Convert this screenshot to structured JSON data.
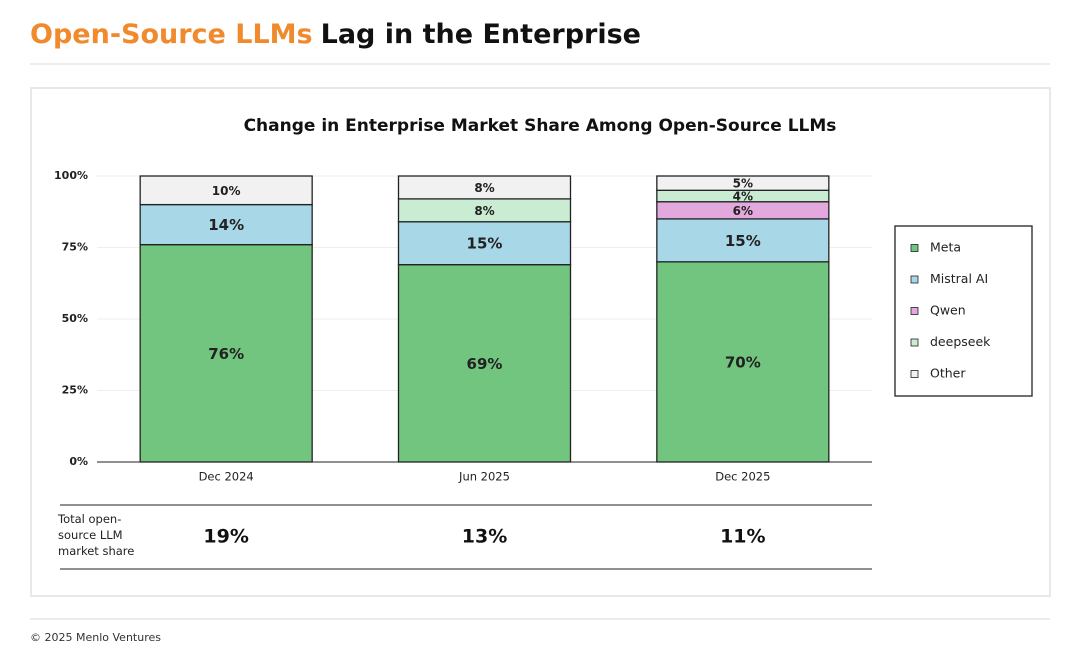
{
  "header": {
    "title_highlight": "Open-Source LLMs",
    "title_rest": "Lag in the Enterprise"
  },
  "chart_data": {
    "type": "stacked_bar",
    "title": "Change in Enterprise Market Share Among Open-Source LLMs",
    "categories": [
      "Dec 2024",
      "Jun 2025",
      "Dec 2025"
    ],
    "series": [
      {
        "name": "Meta",
        "color": "#72c57f",
        "values": [
          76,
          69,
          70
        ],
        "value_labels": [
          "76%",
          "69%",
          "70%"
        ]
      },
      {
        "name": "Mistral AI",
        "color": "#a8d8e8",
        "values": [
          14,
          15,
          15
        ],
        "value_labels": [
          "14%",
          "15%",
          "15%"
        ]
      },
      {
        "name": "Qwen",
        "color": "#e3a9de",
        "values": [
          null,
          null,
          6
        ],
        "value_labels": [
          null,
          null,
          "6%"
        ]
      },
      {
        "name": "deepseek",
        "color": "#c9ecd3",
        "values": [
          null,
          8,
          4
        ],
        "value_labels": [
          null,
          "8%",
          "4%"
        ]
      },
      {
        "name": "Other",
        "color": "#f1f1f1",
        "values": [
          10,
          8,
          5
        ],
        "value_labels": [
          "10%",
          "8%",
          "5%"
        ]
      }
    ],
    "ylim": [
      0,
      100
    ],
    "yticks": [
      {
        "value": 0,
        "label": "0%"
      },
      {
        "value": 25,
        "label": "25%"
      },
      {
        "value": 50,
        "label": "50%"
      },
      {
        "value": 75,
        "label": "75%"
      },
      {
        "value": 100,
        "label": "100%"
      }
    ],
    "grid": true,
    "legend": "right"
  },
  "summary": {
    "label": "Total open-source LLM market share",
    "values": [
      "19%",
      "13%",
      "11%"
    ]
  },
  "footer": "© 2025 Menlo Ventures"
}
